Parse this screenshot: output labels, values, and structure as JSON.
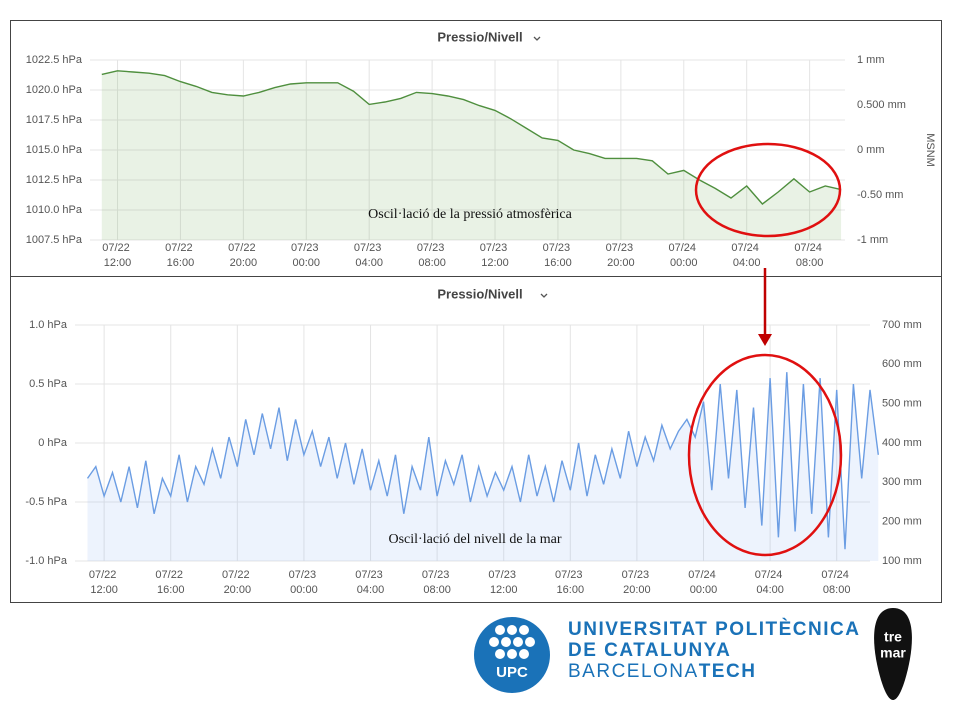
{
  "chart_data": [
    {
      "type": "line",
      "title": "Pressio/Nivell",
      "annotation": "Oscil·lació de la pressió atmosfèrica",
      "y2_label": "MSNM",
      "color": "#4f8f3e",
      "area": true,
      "x": [
        "07/22 11:00",
        "07/22 12:00",
        "07/22 13:00",
        "07/22 14:00",
        "07/22 15:00",
        "07/22 16:00",
        "07/22 17:00",
        "07/22 18:00",
        "07/22 19:00",
        "07/22 20:00",
        "07/22 21:00",
        "07/22 22:00",
        "07/22 23:00",
        "07/23 00:00",
        "07/23 01:00",
        "07/23 02:00",
        "07/23 03:00",
        "07/23 04:00",
        "07/23 05:00",
        "07/23 06:00",
        "07/23 07:00",
        "07/23 08:00",
        "07/23 09:00",
        "07/23 10:00",
        "07/23 11:00",
        "07/23 12:00",
        "07/23 13:00",
        "07/23 14:00",
        "07/23 15:00",
        "07/23 16:00",
        "07/23 17:00",
        "07/23 18:00",
        "07/23 19:00",
        "07/23 20:00",
        "07/23 21:00",
        "07/23 22:00",
        "07/23 23:00",
        "07/24 00:00",
        "07/24 01:00",
        "07/24 02:00",
        "07/24 03:00",
        "07/24 04:00",
        "07/24 05:00",
        "07/24 06:00",
        "07/24 07:00",
        "07/24 08:00",
        "07/24 09:00",
        "07/24 10:00"
      ],
      "values": [
        1021.3,
        1021.6,
        1021.5,
        1021.4,
        1021.2,
        1020.7,
        1020.3,
        1019.8,
        1019.6,
        1019.5,
        1019.8,
        1020.2,
        1020.5,
        1020.6,
        1020.6,
        1020.6,
        1019.9,
        1018.8,
        1019.0,
        1019.3,
        1019.8,
        1019.7,
        1019.5,
        1019.2,
        1018.7,
        1018.3,
        1017.6,
        1016.8,
        1016.0,
        1015.8,
        1015.0,
        1014.7,
        1014.3,
        1014.3,
        1014.3,
        1014.1,
        1013.0,
        1013.3,
        1012.5,
        1011.8,
        1011.0,
        1012.0,
        1010.5,
        1011.5,
        1012.6,
        1011.5,
        1012.0,
        1011.7
      ],
      "xlim": [
        "07/22 10:15",
        "07/24 10:15"
      ],
      "xticks": [
        "07/22 12:00",
        "07/22 16:00",
        "07/22 20:00",
        "07/23 00:00",
        "07/23 04:00",
        "07/23 08:00",
        "07/23 12:00",
        "07/23 16:00",
        "07/23 20:00",
        "07/24 00:00",
        "07/24 04:00",
        "07/24 08:00"
      ],
      "ylim": [
        1007.5,
        1022.5
      ],
      "yticks": [
        {
          "value": 1022.5,
          "label": "1022.5 hPa"
        },
        {
          "value": 1020,
          "label": "1020.0 hPa"
        },
        {
          "value": 1017.5,
          "label": "1017.5 hPa"
        },
        {
          "value": 1015,
          "label": "1015.0 hPa"
        },
        {
          "value": 1012.5,
          "label": "1012.5 hPa"
        },
        {
          "value": 1010,
          "label": "1010.0 hPa"
        },
        {
          "value": 1007.5,
          "label": "1007.5 hPa"
        }
      ],
      "y2lim": [
        -1,
        1
      ],
      "y2ticks": [
        {
          "value": 1,
          "label": "1 mm"
        },
        {
          "value": 0.5,
          "label": "0.500 mm"
        },
        {
          "value": 0,
          "label": "0 mm"
        },
        {
          "value": -0.5,
          "label": "-0.50 mm"
        },
        {
          "value": -1,
          "label": "-1 mm"
        }
      ],
      "grid": true
    },
    {
      "type": "line",
      "title": "Pressio/Nivell",
      "annotation": "Oscil·lació del nivell de la mar",
      "color": "#6b9de3",
      "area": true,
      "x": [
        "07/22 11:00",
        "07/22 11:30",
        "07/22 12:00",
        "07/22 12:30",
        "07/22 13:00",
        "07/22 13:30",
        "07/22 14:00",
        "07/22 14:30",
        "07/22 15:00",
        "07/22 15:30",
        "07/22 16:00",
        "07/22 16:30",
        "07/22 17:00",
        "07/22 17:30",
        "07/22 18:00",
        "07/22 18:30",
        "07/22 19:00",
        "07/22 19:30",
        "07/22 20:00",
        "07/22 20:30",
        "07/22 21:00",
        "07/22 21:30",
        "07/22 22:00",
        "07/22 22:30",
        "07/22 23:00",
        "07/22 23:30",
        "07/23 00:00",
        "07/23 00:30",
        "07/23 01:00",
        "07/23 01:30",
        "07/23 02:00",
        "07/23 02:30",
        "07/23 03:00",
        "07/23 03:30",
        "07/23 04:00",
        "07/23 04:30",
        "07/23 05:00",
        "07/23 05:30",
        "07/23 06:00",
        "07/23 06:30",
        "07/23 07:00",
        "07/23 07:30",
        "07/23 08:00",
        "07/23 08:30",
        "07/23 09:00",
        "07/23 09:30",
        "07/23 10:00",
        "07/23 10:30",
        "07/23 11:00",
        "07/23 11:30",
        "07/23 12:00",
        "07/23 12:30",
        "07/23 13:00",
        "07/23 13:30",
        "07/23 14:00",
        "07/23 14:30",
        "07/23 15:00",
        "07/23 15:30",
        "07/23 16:00",
        "07/23 16:30",
        "07/23 17:00",
        "07/23 17:30",
        "07/23 18:00",
        "07/23 18:30",
        "07/23 19:00",
        "07/23 19:30",
        "07/23 20:00",
        "07/23 20:30",
        "07/23 21:00",
        "07/23 21:30",
        "07/23 22:00",
        "07/23 22:30",
        "07/23 23:00",
        "07/23 23:30",
        "07/24 00:00",
        "07/24 00:30",
        "07/24 01:00",
        "07/24 01:30",
        "07/24 02:00",
        "07/24 02:30",
        "07/24 03:00",
        "07/24 03:30",
        "07/24 04:00",
        "07/24 04:30",
        "07/24 05:00",
        "07/24 05:30",
        "07/24 06:00",
        "07/24 06:30",
        "07/24 07:00",
        "07/24 07:30",
        "07/24 08:00",
        "07/24 08:30",
        "07/24 09:00",
        "07/24 09:30",
        "07/24 10:00",
        "07/24 10:30"
      ],
      "values": [
        -0.3,
        -0.2,
        -0.45,
        -0.25,
        -0.5,
        -0.2,
        -0.55,
        -0.15,
        -0.6,
        -0.3,
        -0.45,
        -0.1,
        -0.5,
        -0.2,
        -0.35,
        -0.05,
        -0.3,
        0.05,
        -0.2,
        0.2,
        -0.1,
        0.25,
        -0.05,
        0.3,
        -0.15,
        0.2,
        -0.1,
        0.1,
        -0.2,
        0.05,
        -0.3,
        0.0,
        -0.35,
        -0.05,
        -0.4,
        -0.15,
        -0.45,
        -0.1,
        -0.6,
        -0.2,
        -0.4,
        0.05,
        -0.45,
        -0.15,
        -0.35,
        -0.1,
        -0.5,
        -0.2,
        -0.45,
        -0.25,
        -0.4,
        -0.2,
        -0.5,
        -0.1,
        -0.45,
        -0.2,
        -0.5,
        -0.15,
        -0.4,
        0.0,
        -0.45,
        -0.1,
        -0.35,
        -0.05,
        -0.3,
        0.1,
        -0.2,
        0.05,
        -0.15,
        0.15,
        -0.05,
        0.1,
        0.2,
        0.05,
        0.35,
        -0.4,
        0.5,
        -0.3,
        0.45,
        -0.55,
        0.3,
        -0.7,
        0.55,
        -0.8,
        0.6,
        -0.75,
        0.5,
        -0.6,
        0.55,
        -0.8,
        0.45,
        -0.9,
        0.5,
        -0.3,
        0.45,
        -0.1
      ],
      "xlim": [
        "07/22 10:15",
        "07/24 10:00"
      ],
      "xticks": [
        "07/22 12:00",
        "07/22 16:00",
        "07/22 20:00",
        "07/23 00:00",
        "07/23 04:00",
        "07/23 08:00",
        "07/23 12:00",
        "07/23 16:00",
        "07/23 20:00",
        "07/24 00:00",
        "07/24 04:00",
        "07/24 08:00"
      ],
      "ylim": [
        -1,
        1
      ],
      "yticks": [
        {
          "value": 1,
          "label": "1.0 hPa"
        },
        {
          "value": 0.5,
          "label": "0.5 hPa"
        },
        {
          "value": 0,
          "label": "0 hPa"
        },
        {
          "value": -0.5,
          "label": "-0.5 hPa"
        },
        {
          "value": -1,
          "label": "-1.0 hPa"
        }
      ],
      "y2lim": [
        100,
        700
      ],
      "y2ticks": [
        {
          "value": 700,
          "label": "700 mm"
        },
        {
          "value": 600,
          "label": "600 mm"
        },
        {
          "value": 500,
          "label": "500 mm"
        },
        {
          "value": 400,
          "label": "400 mm"
        },
        {
          "value": 300,
          "label": "300 mm"
        },
        {
          "value": 200,
          "label": "200 mm"
        },
        {
          "value": 100,
          "label": "100 mm"
        }
      ],
      "grid": true
    }
  ],
  "footer": {
    "upc": "UPC",
    "line1": "UNIVERSITAT POLITÈCNICA",
    "line2": "DE CATALUNYA",
    "line3a": "BARCELONA",
    "line3b": "TECH",
    "tremar1": "tre",
    "tremar2": "mar"
  }
}
